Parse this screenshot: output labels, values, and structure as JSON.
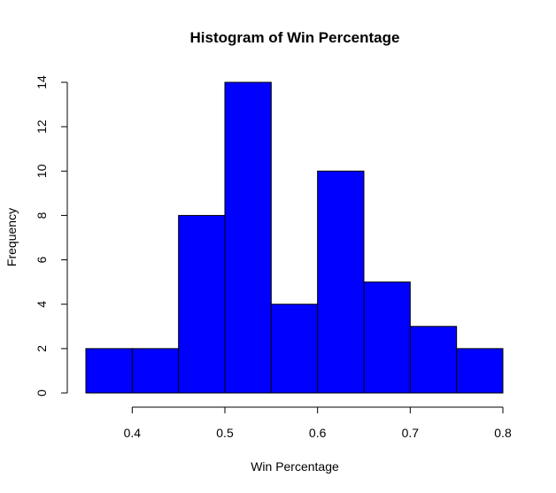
{
  "chart_data": {
    "type": "bar",
    "title": "Histogram of Win Percentage",
    "xlabel": "Win Percentage",
    "ylabel": "Frequency",
    "bins": [
      {
        "start": 0.35,
        "end": 0.4,
        "count": 2
      },
      {
        "start": 0.4,
        "end": 0.45,
        "count": 2
      },
      {
        "start": 0.45,
        "end": 0.5,
        "count": 8
      },
      {
        "start": 0.5,
        "end": 0.55,
        "count": 14
      },
      {
        "start": 0.55,
        "end": 0.6,
        "count": 4
      },
      {
        "start": 0.6,
        "end": 0.65,
        "count": 10
      },
      {
        "start": 0.65,
        "end": 0.7,
        "count": 5
      },
      {
        "start": 0.7,
        "end": 0.75,
        "count": 3
      },
      {
        "start": 0.75,
        "end": 0.8,
        "count": 2
      }
    ],
    "xticks": [
      0.4,
      0.5,
      0.6,
      0.7,
      0.8
    ],
    "xtick_labels": [
      "0.4",
      "0.5",
      "0.6",
      "0.7",
      "0.8"
    ],
    "yticks": [
      0,
      2,
      4,
      6,
      8,
      10,
      12,
      14
    ],
    "ytick_labels": [
      "0",
      "2",
      "4",
      "6",
      "8",
      "10",
      "12",
      "14"
    ],
    "xlim": [
      0.35,
      0.8
    ],
    "ylim": [
      0,
      14
    ],
    "grid": false,
    "bar_color": "#0000ff",
    "edge_color": "#000000"
  }
}
